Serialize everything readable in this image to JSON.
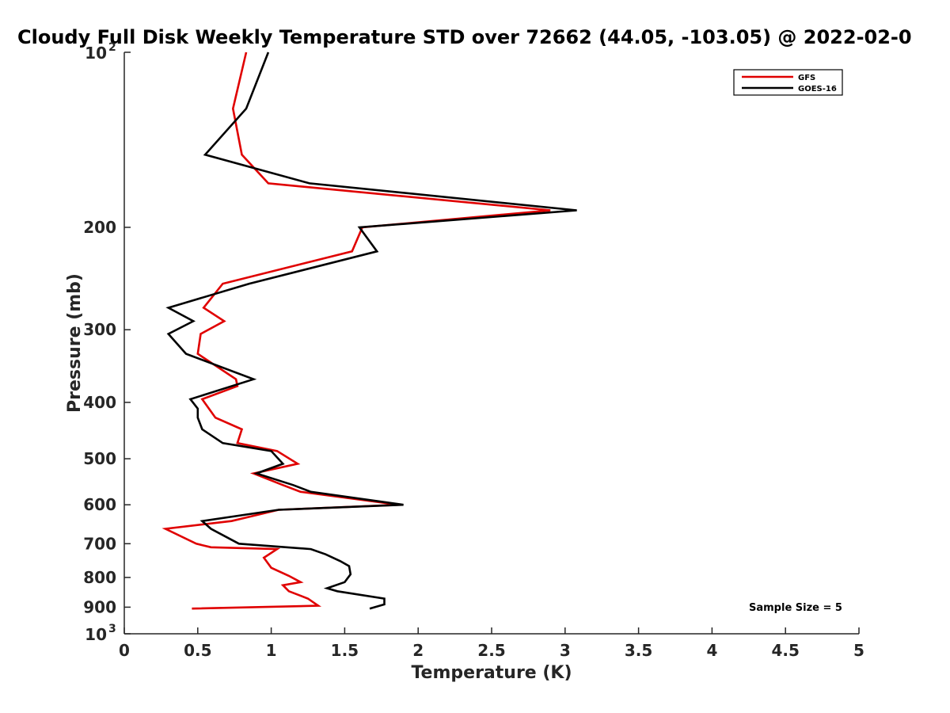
{
  "chart_data": {
    "type": "line",
    "title": "Cloudy Full Disk Weekly Temperature STD over 72662 (44.05, -103.05) @ 2022-02-0",
    "xlabel": "Temperature (K)",
    "ylabel": "Pressure (mb)",
    "xlim": [
      0,
      5
    ],
    "ylim": [
      1000,
      100
    ],
    "y_scale": "log",
    "y_reversed": true,
    "x_ticks": [
      "0",
      "0.5",
      "1",
      "1.5",
      "2",
      "2.5",
      "3",
      "3.5",
      "4",
      "4.5",
      "5"
    ],
    "y_ticks": [
      {
        "value": 100,
        "base": "10",
        "exp": "2"
      },
      {
        "value": 200,
        "label": "200"
      },
      {
        "value": 300,
        "label": "300"
      },
      {
        "value": 400,
        "label": "400"
      },
      {
        "value": 500,
        "label": "500"
      },
      {
        "value": 600,
        "label": "600"
      },
      {
        "value": 700,
        "label": "700"
      },
      {
        "value": 800,
        "label": "800"
      },
      {
        "value": 900,
        "label": "900"
      },
      {
        "value": 1000,
        "base": "10",
        "exp": "3"
      }
    ],
    "grid": false,
    "legend_position": "top-right",
    "annotation": "Sample Size = 5",
    "series": [
      {
        "name": "GFS",
        "color": "#e00000",
        "points": [
          [
            0.83,
            100
          ],
          [
            0.74,
            125
          ],
          [
            0.8,
            150
          ],
          [
            0.98,
            168
          ],
          [
            2.9,
            187
          ],
          [
            1.62,
            200
          ],
          [
            1.55,
            220
          ],
          [
            0.67,
            250
          ],
          [
            0.54,
            275
          ],
          [
            0.68,
            290
          ],
          [
            0.52,
            305
          ],
          [
            0.5,
            330
          ],
          [
            0.76,
            365
          ],
          [
            0.77,
            375
          ],
          [
            0.53,
            395
          ],
          [
            0.62,
            425
          ],
          [
            0.8,
            445
          ],
          [
            0.77,
            470
          ],
          [
            1.04,
            485
          ],
          [
            1.18,
            510
          ],
          [
            0.88,
            530
          ],
          [
            1.08,
            555
          ],
          [
            1.2,
            570
          ],
          [
            1.87,
            600
          ],
          [
            1.05,
            612
          ],
          [
            0.73,
            640
          ],
          [
            0.28,
            660
          ],
          [
            0.49,
            700
          ],
          [
            0.59,
            710
          ],
          [
            1.04,
            715
          ],
          [
            0.95,
            740
          ],
          [
            1.0,
            770
          ],
          [
            1.12,
            795
          ],
          [
            1.2,
            815
          ],
          [
            1.08,
            825
          ],
          [
            1.12,
            845
          ],
          [
            1.25,
            870
          ],
          [
            1.32,
            895
          ],
          [
            0.46,
            905
          ]
        ]
      },
      {
        "name": "GOES-16",
        "color": "#000000",
        "points": [
          [
            0.98,
            100
          ],
          [
            0.83,
            125
          ],
          [
            0.55,
            150
          ],
          [
            1.26,
            168
          ],
          [
            3.08,
            187
          ],
          [
            1.6,
            200
          ],
          [
            1.72,
            220
          ],
          [
            0.85,
            250
          ],
          [
            0.3,
            275
          ],
          [
            0.47,
            290
          ],
          [
            0.3,
            305
          ],
          [
            0.42,
            330
          ],
          [
            0.88,
            365
          ],
          [
            0.45,
            395
          ],
          [
            0.5,
            410
          ],
          [
            0.5,
            425
          ],
          [
            0.53,
            445
          ],
          [
            0.67,
            470
          ],
          [
            1.0,
            485
          ],
          [
            1.08,
            510
          ],
          [
            0.9,
            530
          ],
          [
            1.15,
            555
          ],
          [
            1.27,
            570
          ],
          [
            1.9,
            600
          ],
          [
            1.05,
            612
          ],
          [
            0.53,
            640
          ],
          [
            0.59,
            660
          ],
          [
            0.78,
            700
          ],
          [
            1.27,
            715
          ],
          [
            1.37,
            730
          ],
          [
            1.47,
            750
          ],
          [
            1.53,
            765
          ],
          [
            1.54,
            790
          ],
          [
            1.5,
            815
          ],
          [
            1.38,
            835
          ],
          [
            1.45,
            845
          ],
          [
            1.77,
            870
          ],
          [
            1.77,
            890
          ],
          [
            1.67,
            905
          ]
        ]
      }
    ]
  }
}
